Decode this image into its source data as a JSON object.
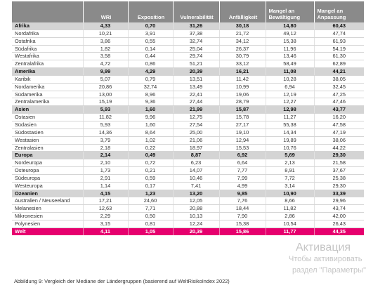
{
  "table": {
    "headers": [
      "",
      "WRI",
      "Exposition",
      "Vulnerabilität",
      "Anfälligkeit",
      "Mangel an Bewältigung",
      "Mangel an Anpassung"
    ],
    "rows": [
      {
        "type": "region",
        "cells": [
          "Afrika",
          "4,33",
          "0,70",
          "31,26",
          "30,18",
          "14,80",
          "60,43"
        ]
      },
      {
        "type": "country",
        "cells": [
          "Nordafrika",
          "10,21",
          "3,91",
          "37,38",
          "21,72",
          "49,12",
          "47,74"
        ]
      },
      {
        "type": "country",
        "cells": [
          "Ostafrika",
          "3,86",
          "0,55",
          "32,74",
          "34,12",
          "15,38",
          "61,93"
        ]
      },
      {
        "type": "country",
        "cells": [
          "Südafrika",
          "1,82",
          "0,14",
          "25,04",
          "26,37",
          "11,96",
          "54,19"
        ]
      },
      {
        "type": "country",
        "cells": [
          "Westafrika",
          "3,58",
          "0,44",
          "29,74",
          "30,79",
          "13,46",
          "61,30"
        ]
      },
      {
        "type": "country",
        "cells": [
          "Zentralafrika",
          "4,72",
          "0,86",
          "51,21",
          "33,12",
          "58,49",
          "62,89"
        ]
      },
      {
        "type": "region",
        "cells": [
          "Amerika",
          "9,99",
          "4,29",
          "20,39",
          "16,21",
          "11,08",
          "44,21"
        ]
      },
      {
        "type": "country",
        "cells": [
          "Karibik",
          "5,07",
          "0,79",
          "13,51",
          "11,42",
          "10,28",
          "38,05"
        ]
      },
      {
        "type": "country",
        "cells": [
          "Nordamerika",
          "20,86",
          "32,74",
          "13,49",
          "10,99",
          "6,94",
          "32,45"
        ]
      },
      {
        "type": "country",
        "cells": [
          "Südamerika",
          "13,00",
          "8,96",
          "22,41",
          "19,06",
          "12,19",
          "47,25"
        ]
      },
      {
        "type": "country",
        "cells": [
          "Zentralamerika",
          "15,19",
          "9,36",
          "27,44",
          "28,79",
          "12,27",
          "47,46"
        ]
      },
      {
        "type": "region",
        "cells": [
          "Asien",
          "5,93",
          "1,60",
          "21,99",
          "15,87",
          "12,98",
          "43,77"
        ]
      },
      {
        "type": "country",
        "cells": [
          "Ostasien",
          "11,82",
          "9,96",
          "12,75",
          "15,78",
          "11,27",
          "16,20"
        ]
      },
      {
        "type": "country",
        "cells": [
          "Südasien",
          "5,93",
          "1,60",
          "27,54",
          "27,17",
          "55,38",
          "47,58"
        ]
      },
      {
        "type": "country",
        "cells": [
          "Südostasien",
          "14,36",
          "8,64",
          "25,00",
          "19,10",
          "14,34",
          "47,19"
        ]
      },
      {
        "type": "country",
        "cells": [
          "Westasien",
          "3,79",
          "1,02",
          "21,06",
          "12,94",
          "19,89",
          "38,06"
        ]
      },
      {
        "type": "country",
        "cells": [
          "Zentralasien",
          "2,18",
          "0,22",
          "18,97",
          "15,53",
          "10,76",
          "44,22"
        ]
      },
      {
        "type": "region",
        "cells": [
          "Europa",
          "2,14",
          "0,49",
          "8,87",
          "6,92",
          "5,69",
          "29,30"
        ]
      },
      {
        "type": "country",
        "cells": [
          "Nordeuropa",
          "2,10",
          "0,72",
          "6,23",
          "6,64",
          "2,13",
          "21,58"
        ]
      },
      {
        "type": "country",
        "cells": [
          "Osteuropa",
          "1,73",
          "0,21",
          "14,07",
          "7,77",
          "8,91",
          "37,67"
        ]
      },
      {
        "type": "country",
        "cells": [
          "Südeuropa",
          "2,91",
          "0,59",
          "10,46",
          "7,99",
          "7,72",
          "25,38"
        ]
      },
      {
        "type": "country",
        "cells": [
          "Westeuropa",
          "1,14",
          "0,17",
          "7,41",
          "4,99",
          "3,14",
          "29,30"
        ]
      },
      {
        "type": "region",
        "cells": [
          "Ozeanien",
          "4,15",
          "1,23",
          "13,20",
          "9,85",
          "10,90",
          "33,39"
        ]
      },
      {
        "type": "country",
        "cells": [
          "Australien / Neuseeland",
          "17,21",
          "24,60",
          "12,05",
          "7,76",
          "8,66",
          "29,96"
        ]
      },
      {
        "type": "country",
        "cells": [
          "Melanesien",
          "12,63",
          "7,71",
          "20,88",
          "18,44",
          "11,82",
          "43,74"
        ]
      },
      {
        "type": "country",
        "cells": [
          "Mikronesien",
          "2,29",
          "0,50",
          "10,13",
          "7,90",
          "2,86",
          "42,00"
        ]
      },
      {
        "type": "country",
        "cells": [
          "Polynesien",
          "3,15",
          "0,81",
          "12,24",
          "15,38",
          "10,54",
          "26,43"
        ]
      },
      {
        "type": "world",
        "cells": [
          "Welt",
          "4,11",
          "1,05",
          "20,39",
          "15,86",
          "11,77",
          "44,35"
        ]
      }
    ]
  },
  "caption": "Abbildung 9: Vergleich der Mediane der Ländergruppen (basierend auf WeltRisikoIndex 2022)",
  "watermark": {
    "line1": "Активация",
    "line2": "Чтобы активировать",
    "line3": "раздел \"Параметры\""
  },
  "colors": {
    "header_bg": "#8a8a8a",
    "region_bg": "#d4d4d4",
    "world_bg": "#e6006e"
  }
}
